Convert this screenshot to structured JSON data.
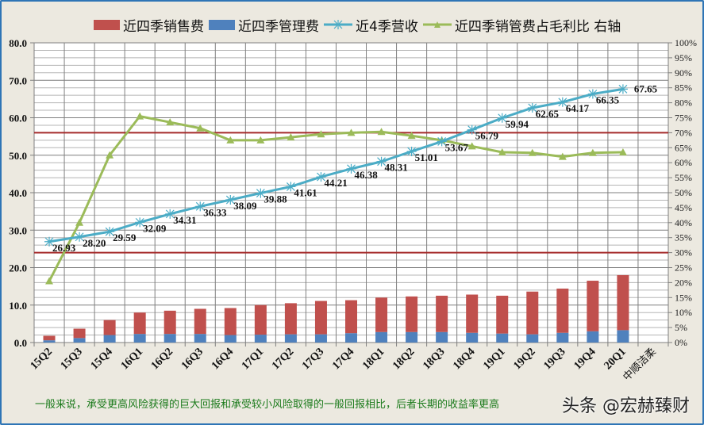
{
  "legend": {
    "items": [
      {
        "label": "近四季销售费",
        "type": "bar",
        "color": "#c0504d"
      },
      {
        "label": "近四季管理费",
        "type": "bar",
        "color": "#4f81bd"
      },
      {
        "label": "近4季营收",
        "type": "line",
        "color": "#4bacc6",
        "marker": "star"
      },
      {
        "label": "近四季销管费占毛利比 右轴",
        "type": "line",
        "color": "#9bbb59",
        "marker": "triangle"
      }
    ]
  },
  "footer": {
    "note": "一般来说，承受更高风险获得的巨大回报和承受较小风险取得的一般回报相比，后者长期的收益率更高",
    "watermark": "头条 @宏赫臻财"
  },
  "chart_data": {
    "type": "bar+line",
    "title": "",
    "categories": [
      "15Q2",
      "15Q3",
      "15Q4",
      "16Q1",
      "16Q2",
      "16Q3",
      "16Q4",
      "17Q1",
      "17Q2",
      "17Q3",
      "17Q4",
      "18Q1",
      "18Q2",
      "18Q3",
      "18Q4",
      "19Q1",
      "19Q2",
      "19Q3",
      "19Q4",
      "20Q1",
      "中顺洁柔"
    ],
    "left_axis": {
      "ylim": [
        0,
        80
      ],
      "ticks": [
        "0.0",
        "10.0",
        "20.0",
        "30.0",
        "40.0",
        "50.0",
        "60.0",
        "70.0",
        "80.0"
      ],
      "minor_step": 2
    },
    "right_axis": {
      "ylim": [
        0,
        100
      ],
      "ticks": [
        "0%",
        "5%",
        "10%",
        "15%",
        "20%",
        "25%",
        "30%",
        "35%",
        "40%",
        "45%",
        "50%",
        "55%",
        "60%",
        "65%",
        "70%",
        "75%",
        "80%",
        "85%",
        "90%",
        "95%",
        "100%"
      ]
    },
    "series": [
      {
        "name": "近四季销售费",
        "type": "stacked-bar",
        "axis": "left",
        "color": "#c0504d",
        "values": [
          1.2,
          2.5,
          4.0,
          5.7,
          6.2,
          6.7,
          7.2,
          7.9,
          8.3,
          8.9,
          8.8,
          9.2,
          9.5,
          9.7,
          10.2,
          10.1,
          11.4,
          11.8,
          13.5,
          14.7,
          null
        ]
      },
      {
        "name": "近四季管理费",
        "type": "stacked-bar",
        "axis": "left",
        "color": "#4f81bd",
        "values": [
          0.6,
          1.2,
          2.0,
          2.3,
          2.3,
          2.3,
          2.0,
          2.1,
          2.2,
          2.2,
          2.5,
          2.8,
          2.8,
          2.8,
          2.6,
          2.4,
          2.2,
          2.6,
          3.0,
          3.3,
          null
        ]
      },
      {
        "name": "近4季营收",
        "type": "line",
        "axis": "left",
        "color": "#4bacc6",
        "values": [
          26.93,
          28.2,
          29.59,
          32.09,
          34.31,
          36.33,
          38.09,
          39.88,
          41.61,
          44.21,
          46.38,
          48.31,
          51.01,
          53.67,
          56.79,
          59.94,
          62.65,
          64.17,
          66.35,
          67.65,
          null
        ],
        "labels": [
          "26.93",
          "28.20",
          "29.59",
          "32.09",
          "34.31",
          "36.33",
          "38.09",
          "39.88",
          "41.61",
          "44.21",
          "46.38",
          "48.31",
          "51.01",
          "53.67",
          "56.79",
          "59.94",
          "62.65",
          "64.17",
          "66.35",
          "67.65"
        ]
      },
      {
        "name": "近四季销管费占毛利比 右轴",
        "type": "line",
        "axis": "right",
        "color": "#9bbb59",
        "values": [
          20.5,
          40.0,
          62.5,
          75.5,
          73.5,
          71.5,
          67.5,
          67.5,
          68.5,
          69.5,
          70.0,
          70.3,
          69.0,
          67.5,
          65.5,
          63.5,
          63.3,
          62.0,
          63.3,
          63.5,
          null
        ]
      }
    ],
    "reference_lines": [
      {
        "axis": "right",
        "value": 70,
        "color": "#a52a2a"
      },
      {
        "axis": "right",
        "value": 30,
        "color": "#a52a2a"
      }
    ],
    "grid": true,
    "legend_position": "top"
  }
}
